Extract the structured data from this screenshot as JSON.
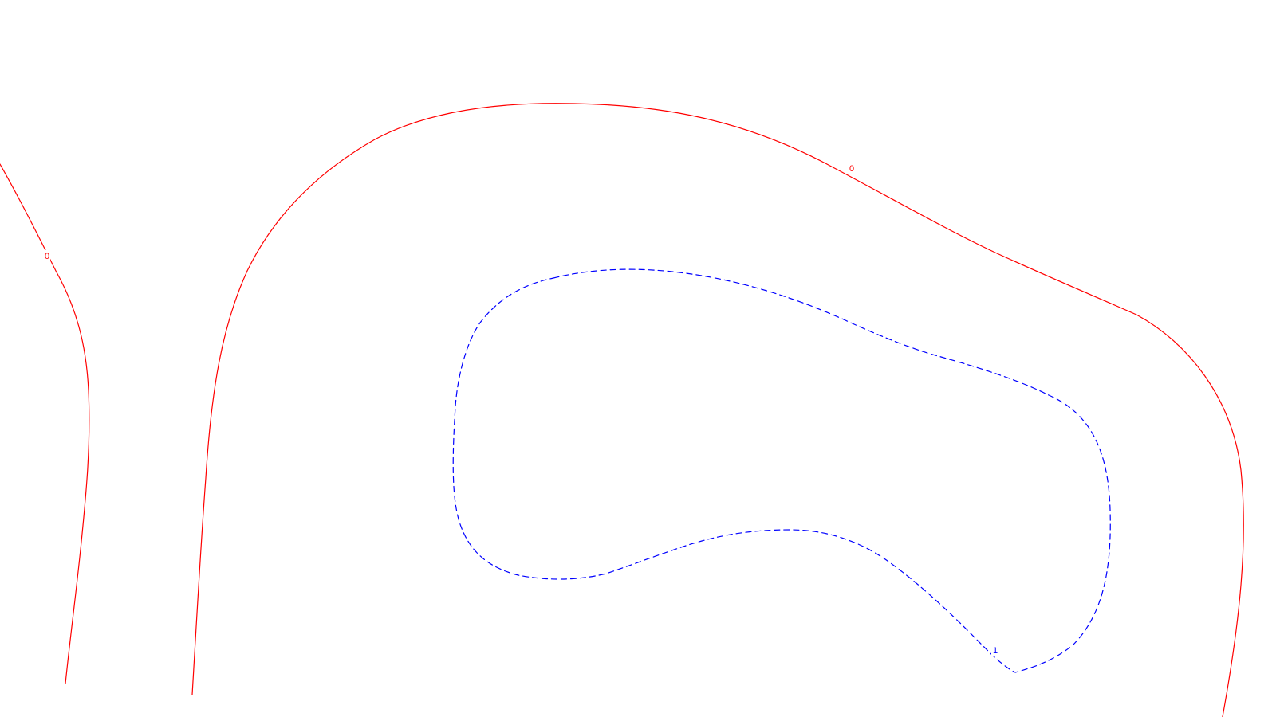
{
  "contours": {
    "zero": {
      "level_label": "0",
      "color": "#ff0000",
      "style": "solid"
    },
    "one": {
      "level_label": "1",
      "color": "#0000ff",
      "style": "dashed"
    }
  }
}
